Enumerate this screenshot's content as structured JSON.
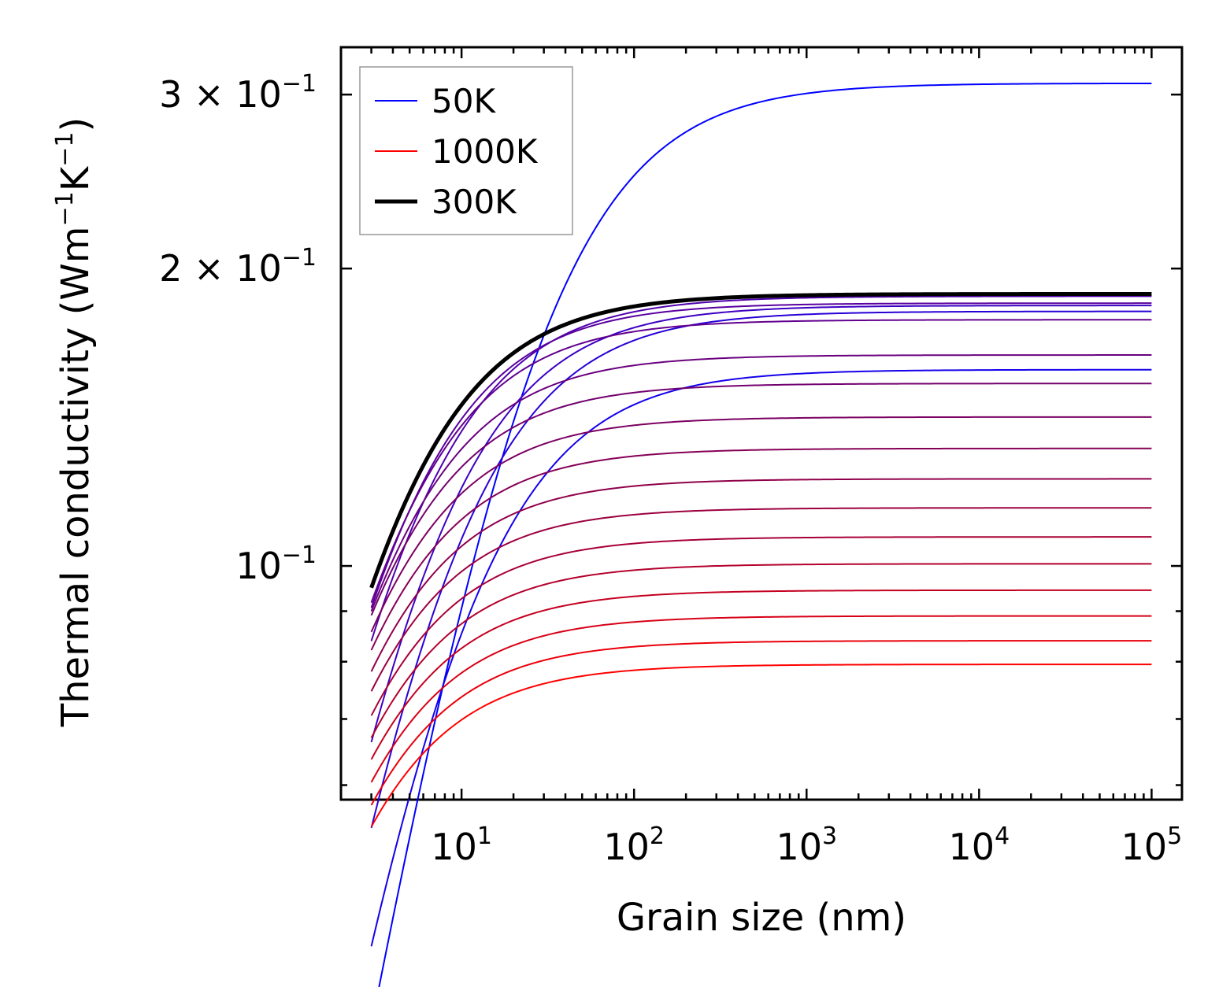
{
  "chart_data": {
    "type": "line",
    "xscale": "log",
    "yscale": "log",
    "xlabel": "Grain size (nm)",
    "ylabel": {
      "text": "Thermal conductivity (Wm",
      "sup1": "−1",
      "mid": "K",
      "sup2": "−1",
      "end": ")"
    },
    "xlim": [
      2,
      150000
    ],
    "ylim": [
      0.058,
      0.335
    ],
    "xticks": [
      {
        "value": 10,
        "base": "10",
        "exp": "1"
      },
      {
        "value": 100,
        "base": "10",
        "exp": "2"
      },
      {
        "value": 1000,
        "base": "10",
        "exp": "3"
      },
      {
        "value": 10000,
        "base": "10",
        "exp": "4"
      },
      {
        "value": 100000,
        "base": "10",
        "exp": "5"
      }
    ],
    "yticks": [
      {
        "value": 0.1,
        "base": "10",
        "exp": "−1",
        "prefix": ""
      },
      {
        "value": 0.2,
        "base": "10",
        "exp": "−1",
        "prefix": "2 × "
      },
      {
        "value": 0.3,
        "base": "10",
        "exp": "−1",
        "prefix": "3 × "
      }
    ],
    "yminor": [
      0.06,
      0.07,
      0.08,
      0.09
    ],
    "x_range_curves": [
      3,
      100000
    ],
    "curve_model": "k(L) = kinf * L / (L + Lc)",
    "series": [
      {
        "name": "50K",
        "legend": true,
        "color": "#0000ff",
        "width": 2,
        "kinf": 0.308,
        "Lc": 24
      },
      {
        "name": "",
        "legend": false,
        "color": "#1400eb",
        "width": 2,
        "kinf": 0.158,
        "Lc": 8.5
      },
      {
        "name": "",
        "legend": false,
        "color": "#2800d7",
        "width": 2,
        "kinf": 0.181,
        "Lc": 7.0
      },
      {
        "name": "",
        "legend": false,
        "color": "#3c00c3",
        "width": 2,
        "kinf": 0.1835,
        "Lc": 5.3
      },
      {
        "name": "",
        "legend": false,
        "color": "#5000af",
        "width": 2,
        "kinf": 0.1875,
        "Lc": 3.7
      },
      {
        "name": "",
        "legend": false,
        "color": "#58009f",
        "width": 2,
        "kinf": 0.1845,
        "Lc": 3.1
      },
      {
        "name": "",
        "legend": false,
        "color": "#62008f",
        "width": 2,
        "kinf": 0.1775,
        "Lc": 2.8
      },
      {
        "name": "",
        "legend": false,
        "color": "#6a007f",
        "width": 2,
        "kinf": 0.1635,
        "Lc": 2.45
      },
      {
        "name": "",
        "legend": false,
        "color": "#72006f",
        "width": 2,
        "kinf": 0.153,
        "Lc": 2.15
      },
      {
        "name": "",
        "legend": false,
        "color": "#7c0062",
        "width": 2,
        "kinf": 0.1415,
        "Lc": 1.95
      },
      {
        "name": "",
        "legend": false,
        "color": "#860056",
        "width": 2,
        "kinf": 0.1315,
        "Lc": 1.8
      },
      {
        "name": "",
        "legend": false,
        "color": "#90004a",
        "width": 2,
        "kinf": 0.1225,
        "Lc": 1.7
      },
      {
        "name": "",
        "legend": false,
        "color": "#9c0040",
        "width": 2,
        "kinf": 0.1145,
        "Lc": 1.6
      },
      {
        "name": "",
        "legend": false,
        "color": "#a80036",
        "width": 2,
        "kinf": 0.107,
        "Lc": 1.55
      },
      {
        "name": "",
        "legend": false,
        "color": "#b4002c",
        "width": 2,
        "kinf": 0.1005,
        "Lc": 1.5
      },
      {
        "name": "",
        "legend": false,
        "color": "#c40020",
        "width": 2,
        "kinf": 0.0945,
        "Lc": 1.45
      },
      {
        "name": "",
        "legend": false,
        "color": "#d80016",
        "width": 2,
        "kinf": 0.089,
        "Lc": 1.42
      },
      {
        "name": "",
        "legend": false,
        "color": "#ea000a",
        "width": 2,
        "kinf": 0.084,
        "Lc": 1.4
      },
      {
        "name": "1000K",
        "legend": true,
        "color": "#ff0000",
        "width": 2,
        "kinf": 0.0795,
        "Lc": 1.38
      },
      {
        "name": "300K",
        "legend": true,
        "color": "#000000",
        "width": 5,
        "kinf": 0.1885,
        "Lc": 2.95
      }
    ],
    "legend": {
      "position": "top-left",
      "order": [
        "50K",
        "1000K",
        "300K"
      ]
    }
  }
}
